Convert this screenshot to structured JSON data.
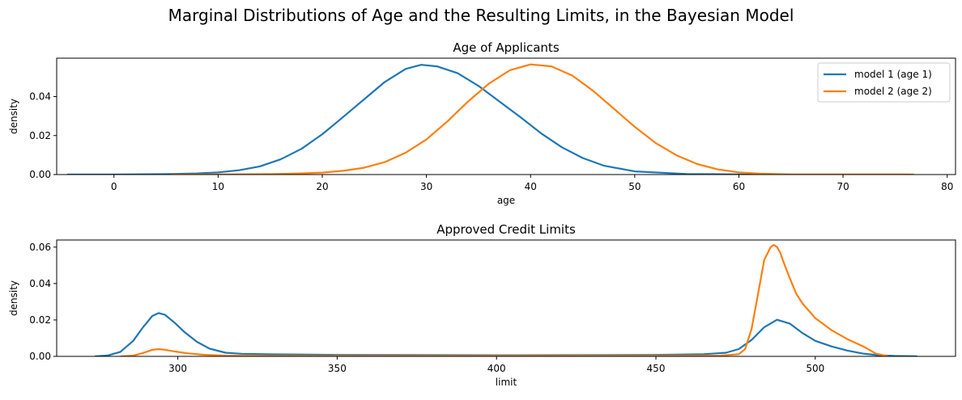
{
  "figure": {
    "suptitle": "Marginal Distributions of Age and the Resulting Limits, in the Bayesian Model"
  },
  "chart_data": [
    {
      "type": "line",
      "title": "Age of Applicants",
      "xlabel": "age",
      "ylabel": "density",
      "xlim": [
        -5.5,
        80.8
      ],
      "ylim": [
        0,
        0.0597
      ],
      "xticks": [
        0,
        10,
        20,
        30,
        40,
        50,
        60,
        70,
        80
      ],
      "yticks": [
        0,
        0.02,
        0.04
      ],
      "ytick_labels": [
        "0.00",
        "0.02",
        "0.04"
      ],
      "legend": {
        "position": "top-right"
      },
      "grid": false,
      "series": [
        {
          "name": "model 1 (age 1)",
          "color": "#1f77b4",
          "x": [
            -4.5,
            0,
            5,
            8,
            10,
            12,
            14,
            16,
            18,
            20,
            22,
            24,
            26,
            28,
            29.5,
            31,
            33,
            35,
            37,
            39,
            41,
            43,
            45,
            47,
            50,
            55,
            60,
            65,
            70,
            76.5
          ],
          "y": [
            0,
            0,
            0.0002,
            0.0006,
            0.0011,
            0.0022,
            0.0042,
            0.0078,
            0.0132,
            0.0207,
            0.0295,
            0.0385,
            0.0475,
            0.0542,
            0.0563,
            0.0555,
            0.052,
            0.0455,
            0.0375,
            0.0295,
            0.0212,
            0.014,
            0.0085,
            0.0046,
            0.0016,
            0.0003,
            0.0001,
            0,
            0,
            0
          ]
        },
        {
          "name": "model 2 (age 2)",
          "color": "#ff7f0e",
          "x": [
            5.5,
            10,
            15,
            18,
            20,
            22,
            24,
            26,
            28,
            30,
            32,
            34,
            36,
            38,
            40,
            42,
            44,
            46,
            48,
            50,
            52,
            54,
            56,
            58,
            60,
            62,
            65,
            70,
            76.8
          ],
          "y": [
            0,
            0.0001,
            0.0002,
            0.0006,
            0.001,
            0.0019,
            0.0035,
            0.0064,
            0.0112,
            0.018,
            0.0272,
            0.0375,
            0.0467,
            0.0535,
            0.0565,
            0.0555,
            0.0508,
            0.043,
            0.0338,
            0.0245,
            0.0162,
            0.0099,
            0.0054,
            0.0026,
            0.0011,
            0.0005,
            0.0001,
            0,
            0
          ]
        }
      ]
    },
    {
      "type": "line",
      "title": "Approved Credit Limits",
      "xlabel": "limit",
      "ylabel": "density",
      "xlim": [
        262,
        544
      ],
      "ylim": [
        0,
        0.0639
      ],
      "xticks": [
        300,
        350,
        400,
        450,
        500
      ],
      "yticks": [
        0,
        0.02,
        0.04,
        0.06
      ],
      "ytick_labels": [
        "0.00",
        "0.02",
        "0.04",
        "0.06"
      ],
      "grid": false,
      "series": [
        {
          "name": "model 1 (age 1)",
          "color": "#1f77b4",
          "x": [
            274,
            278,
            282,
            286,
            289,
            292,
            294,
            296,
            299,
            302,
            306,
            310,
            315,
            320,
            330,
            350,
            400,
            450,
            465,
            472,
            476,
            480,
            484,
            488,
            492,
            496,
            500,
            505,
            510,
            515,
            520,
            525,
            532
          ],
          "y": [
            0,
            0.0005,
            0.0025,
            0.0085,
            0.0158,
            0.0222,
            0.0238,
            0.0228,
            0.0185,
            0.0135,
            0.008,
            0.0042,
            0.002,
            0.0014,
            0.0011,
            0.0008,
            0.0006,
            0.0008,
            0.0012,
            0.002,
            0.004,
            0.009,
            0.016,
            0.0201,
            0.018,
            0.0128,
            0.0085,
            0.0055,
            0.0032,
            0.0015,
            0.0006,
            0.0002,
            0
          ]
        },
        {
          "name": "model 2 (age 2)",
          "color": "#ff7f0e",
          "x": [
            282,
            286,
            289,
            292,
            294,
            296,
            299,
            303,
            308,
            315,
            330,
            350,
            400,
            450,
            470,
            476,
            478,
            480,
            482,
            484,
            486,
            487,
            488,
            489,
            490,
            492,
            494,
            496,
            500,
            505,
            510,
            515,
            519,
            523
          ],
          "y": [
            0,
            0.0004,
            0.0018,
            0.0036,
            0.004,
            0.0036,
            0.0027,
            0.0017,
            0.0009,
            0.0004,
            0.0002,
            0.0002,
            0.0002,
            0.0003,
            0.0004,
            0.0012,
            0.004,
            0.015,
            0.034,
            0.053,
            0.06,
            0.0612,
            0.06,
            0.057,
            0.052,
            0.043,
            0.0345,
            0.029,
            0.021,
            0.0145,
            0.0095,
            0.0055,
            0.0015,
            0
          ]
        }
      ]
    }
  ]
}
